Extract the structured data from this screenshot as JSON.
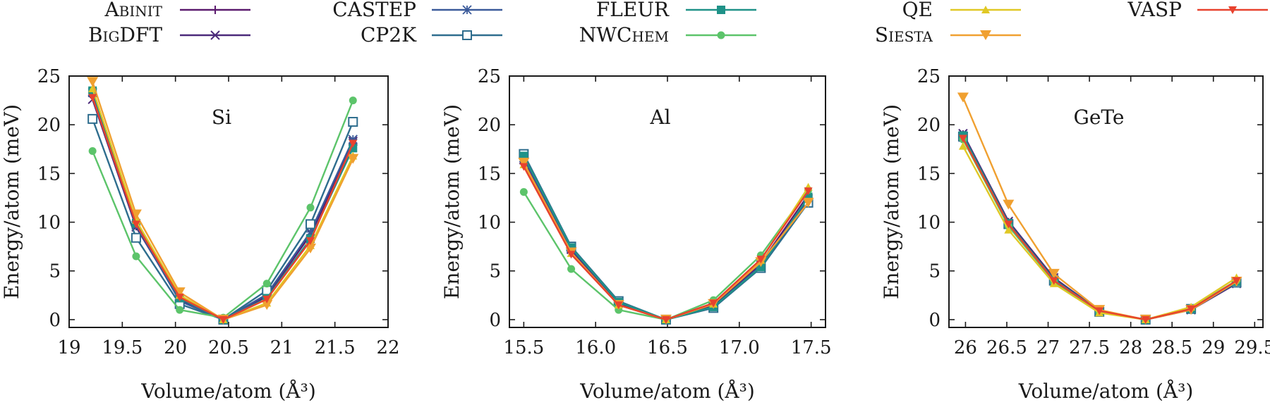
{
  "chart_data": {
    "type": "line",
    "legend": {
      "placement": "top",
      "entries": [
        {
          "name": "Abinit",
          "color": "#5b1a6e",
          "marker": "plus"
        },
        {
          "name": "BigDFT",
          "color": "#4b2a7a",
          "marker": "x"
        },
        {
          "name": "CASTEP",
          "color": "#3b5a9a",
          "marker": "star"
        },
        {
          "name": "CP2K",
          "color": "#2e6d8e",
          "marker": "square-open"
        },
        {
          "name": "FLEUR",
          "color": "#1f9288",
          "marker": "square-filled"
        },
        {
          "name": "NWChem",
          "color": "#5cc46a",
          "marker": "circle-filled"
        },
        {
          "name": "QE",
          "color": "#e0c825",
          "marker": "triangle-up"
        },
        {
          "name": "Siesta",
          "color": "#f0a030",
          "marker": "triangle-down"
        },
        {
          "name": "VASP",
          "color": "#e8422e",
          "marker": "triangle-down-small"
        }
      ]
    },
    "panels": [
      {
        "title": "Si",
        "xlabel": "Volume/atom (Å³)",
        "ylabel": "Energy/atom (meV)",
        "xlim": [
          19,
          22
        ],
        "ylim": [
          -0.8,
          25
        ],
        "xticks": [
          "19",
          "19.5",
          "20",
          "20.5",
          "21",
          "21.5",
          "22"
        ],
        "xtickvals": [
          19,
          19.5,
          20,
          20.5,
          21,
          21.5,
          22
        ],
        "yticks": [
          "0",
          "5",
          "10",
          "15",
          "20",
          "25"
        ],
        "ytickvals": [
          0,
          5,
          10,
          15,
          20,
          25
        ],
        "x": [
          19.22,
          19.63,
          20.04,
          20.45,
          20.86,
          21.27,
          21.67
        ],
        "series": [
          {
            "name": "Abinit",
            "values": [
              22.9,
              9.6,
              2.0,
              0.0,
              2.4,
              8.7,
              18.0
            ]
          },
          {
            "name": "BigDFT",
            "values": [
              22.6,
              9.5,
              2.1,
              0.0,
              2.5,
              8.9,
              18.3
            ]
          },
          {
            "name": "CASTEP",
            "values": [
              23.3,
              9.7,
              1.9,
              0.0,
              2.6,
              9.0,
              18.5
            ]
          },
          {
            "name": "CP2K",
            "values": [
              20.6,
              8.4,
              1.6,
              0.0,
              3.0,
              9.8,
              20.3
            ]
          },
          {
            "name": "FLEUR",
            "values": [
              23.5,
              9.9,
              2.2,
              0.0,
              2.2,
              8.3,
              17.6
            ]
          },
          {
            "name": "NWChem",
            "values": [
              17.3,
              6.5,
              1.0,
              0.2,
              3.7,
              11.5,
              22.5
            ]
          },
          {
            "name": "QE",
            "values": [
              23.7,
              10.2,
              2.5,
              0.0,
              1.7,
              7.6,
              16.8
            ]
          },
          {
            "name": "Siesta",
            "values": [
              24.4,
              10.8,
              2.8,
              0.0,
              1.5,
              7.3,
              16.5
            ]
          },
          {
            "name": "VASP",
            "values": [
              22.8,
              9.8,
              2.3,
              0.0,
              2.1,
              8.1,
              18.1
            ]
          }
        ]
      },
      {
        "title": "Al",
        "xlabel": "Volume/atom (Å³)",
        "ylabel": "Energy/atom (meV)",
        "xlim": [
          15.4,
          17.6
        ],
        "ylim": [
          -0.8,
          25
        ],
        "xticks": [
          "15.5",
          "16.0",
          "16.5",
          "17.0",
          "17.5"
        ],
        "xtickvals": [
          15.5,
          16.0,
          16.5,
          17.0,
          17.5
        ],
        "yticks": [
          "0",
          "5",
          "10",
          "15",
          "20",
          "25"
        ],
        "ytickvals": [
          0,
          5,
          10,
          15,
          20,
          25
        ],
        "x": [
          15.5,
          15.83,
          16.16,
          16.49,
          16.82,
          17.15,
          17.48
        ],
        "series": [
          {
            "name": "Abinit",
            "values": [
              16.2,
              7.0,
              1.6,
              0.0,
              1.5,
              5.8,
              12.8
            ]
          },
          {
            "name": "BigDFT",
            "values": [
              16.4,
              7.2,
              1.7,
              0.0,
              1.4,
              5.6,
              12.4
            ]
          },
          {
            "name": "CASTEP",
            "values": [
              16.6,
              7.3,
              1.8,
              0.0,
              1.3,
              5.5,
              12.2
            ]
          },
          {
            "name": "CP2K",
            "values": [
              17.0,
              7.5,
              1.9,
              0.0,
              1.2,
              5.3,
              12.0
            ]
          },
          {
            "name": "FLEUR",
            "values": [
              16.8,
              7.4,
              1.8,
              0.0,
              1.3,
              5.4,
              12.6
            ]
          },
          {
            "name": "NWChem",
            "values": [
              13.1,
              5.2,
              1.0,
              0.0,
              2.0,
              6.6,
              13.3
            ]
          },
          {
            "name": "QE",
            "values": [
              15.9,
              6.8,
              1.5,
              0.0,
              1.6,
              6.1,
              13.6
            ]
          },
          {
            "name": "Siesta",
            "values": [
              16.1,
              6.9,
              1.5,
              0.0,
              1.6,
              5.9,
              12.0
            ]
          },
          {
            "name": "VASP",
            "values": [
              15.7,
              6.7,
              1.5,
              0.0,
              1.7,
              6.2,
              13.2
            ]
          }
        ]
      },
      {
        "title": "GeTe",
        "xlabel": "Volume/atom (Å³)",
        "ylabel": "Energy/atom (meV)",
        "xlim": [
          25.8,
          29.6
        ],
        "ylim": [
          -0.8,
          25
        ],
        "xticks": [
          "26",
          "26.5",
          "27",
          "27.5",
          "28",
          "28.5",
          "29",
          "29.5"
        ],
        "xtickvals": [
          26,
          26.5,
          27,
          27.5,
          28,
          28.5,
          29,
          29.5
        ],
        "yticks": [
          "0",
          "5",
          "10",
          "15",
          "20",
          "25"
        ],
        "ytickvals": [
          0,
          5,
          10,
          15,
          20,
          25
        ],
        "x": [
          25.97,
          26.52,
          27.07,
          27.62,
          28.18,
          28.73,
          29.28
        ],
        "series": [
          {
            "name": "Abinit",
            "values": [
              19.0,
              10.0,
              4.2,
              0.9,
              0.0,
              1.1,
              3.8
            ]
          },
          {
            "name": "BigDFT",
            "values": [
              19.1,
              10.1,
              4.3,
              0.9,
              0.0,
              1.0,
              3.7
            ]
          },
          {
            "name": "CASTEP",
            "values": [
              18.7,
              9.9,
              4.1,
              0.9,
              0.0,
              1.1,
              3.9
            ]
          },
          {
            "name": "CP2K",
            "values": [
              18.8,
              9.8,
              4.0,
              0.8,
              0.0,
              1.1,
              3.8
            ]
          },
          {
            "name": "FLEUR",
            "values": [
              18.9,
              9.9,
              4.1,
              0.9,
              0.0,
              1.1,
              3.9
            ]
          },
          {
            "name": "NWChem",
            "values": [
              18.5,
              9.6,
              3.9,
              0.8,
              0.0,
              1.2,
              4.0
            ]
          },
          {
            "name": "QE",
            "values": [
              17.8,
              9.2,
              3.7,
              0.7,
              0.0,
              1.3,
              4.3
            ]
          },
          {
            "name": "Siesta",
            "values": [
              22.8,
              11.8,
              4.7,
              1.0,
              0.0,
              1.0,
              3.9
            ]
          },
          {
            "name": "VASP",
            "values": [
              18.6,
              9.8,
              4.0,
              0.9,
              0.0,
              1.1,
              4.0
            ]
          }
        ]
      }
    ]
  }
}
